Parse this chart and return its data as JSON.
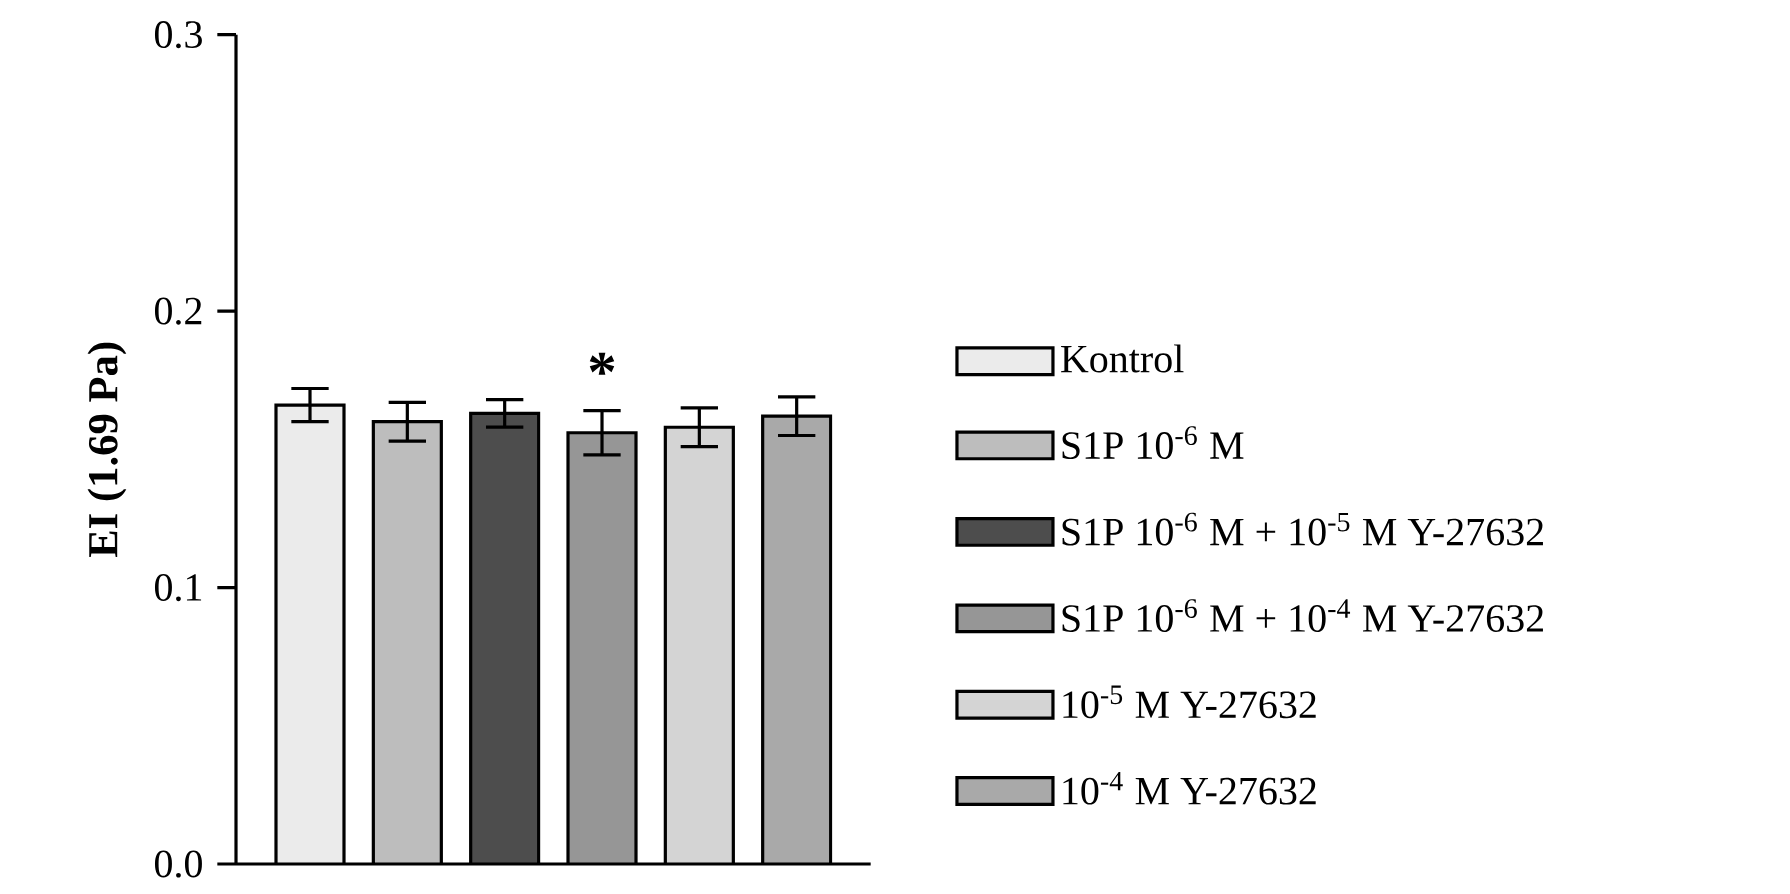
{
  "chart_data": {
    "type": "bar",
    "ylabel": "**EI (1.69 Pa)**",
    "categories": [
      null
    ],
    "series": [
      {
        "name": "Kontrol",
        "color": "#ebebeb",
        "values": [
          0.166
        ],
        "errors": [
          0.006
        ]
      },
      {
        "name": "S1P 10$^{-6}$ M",
        "color": "#bdbdbd",
        "values": [
          0.16
        ],
        "errors": [
          0.007
        ]
      },
      {
        "name": "S1P 10$^{-6}$ M + 10$^{-5}$ M Y-27632",
        "color": "#4d4d4d",
        "values": [
          0.163
        ],
        "errors": [
          0.005
        ]
      },
      {
        "name": "S1P 10$^{-6}$ M + 10$^{-4}$ M Y-27632",
        "color": "#969696",
        "values": [
          0.156
        ],
        "errors": [
          0.008
        ]
      },
      {
        "name": "10$^{-5}$ M Y-27632",
        "color": "#d4d4d4",
        "values": [
          0.158
        ],
        "errors": [
          0.007
        ]
      },
      {
        "name": "10$^{-4}$ M Y-27632",
        "color": "#a9a9a9",
        "values": [
          0.162
        ],
        "errors": [
          0.007
        ]
      }
    ],
    "ylim": [
      0,
      0.3
    ],
    "yticks": [
      {
        "value": 0,
        "label": "0.0"
      },
      {
        "value": 0.1,
        "label": "0.1"
      },
      {
        "value": 0.2,
        "label": "0.2"
      },
      {
        "value": 0.3,
        "label": "0.3"
      }
    ],
    "annotations": [
      "*"
    ],
    "legend": "right",
    "grid": false
  }
}
